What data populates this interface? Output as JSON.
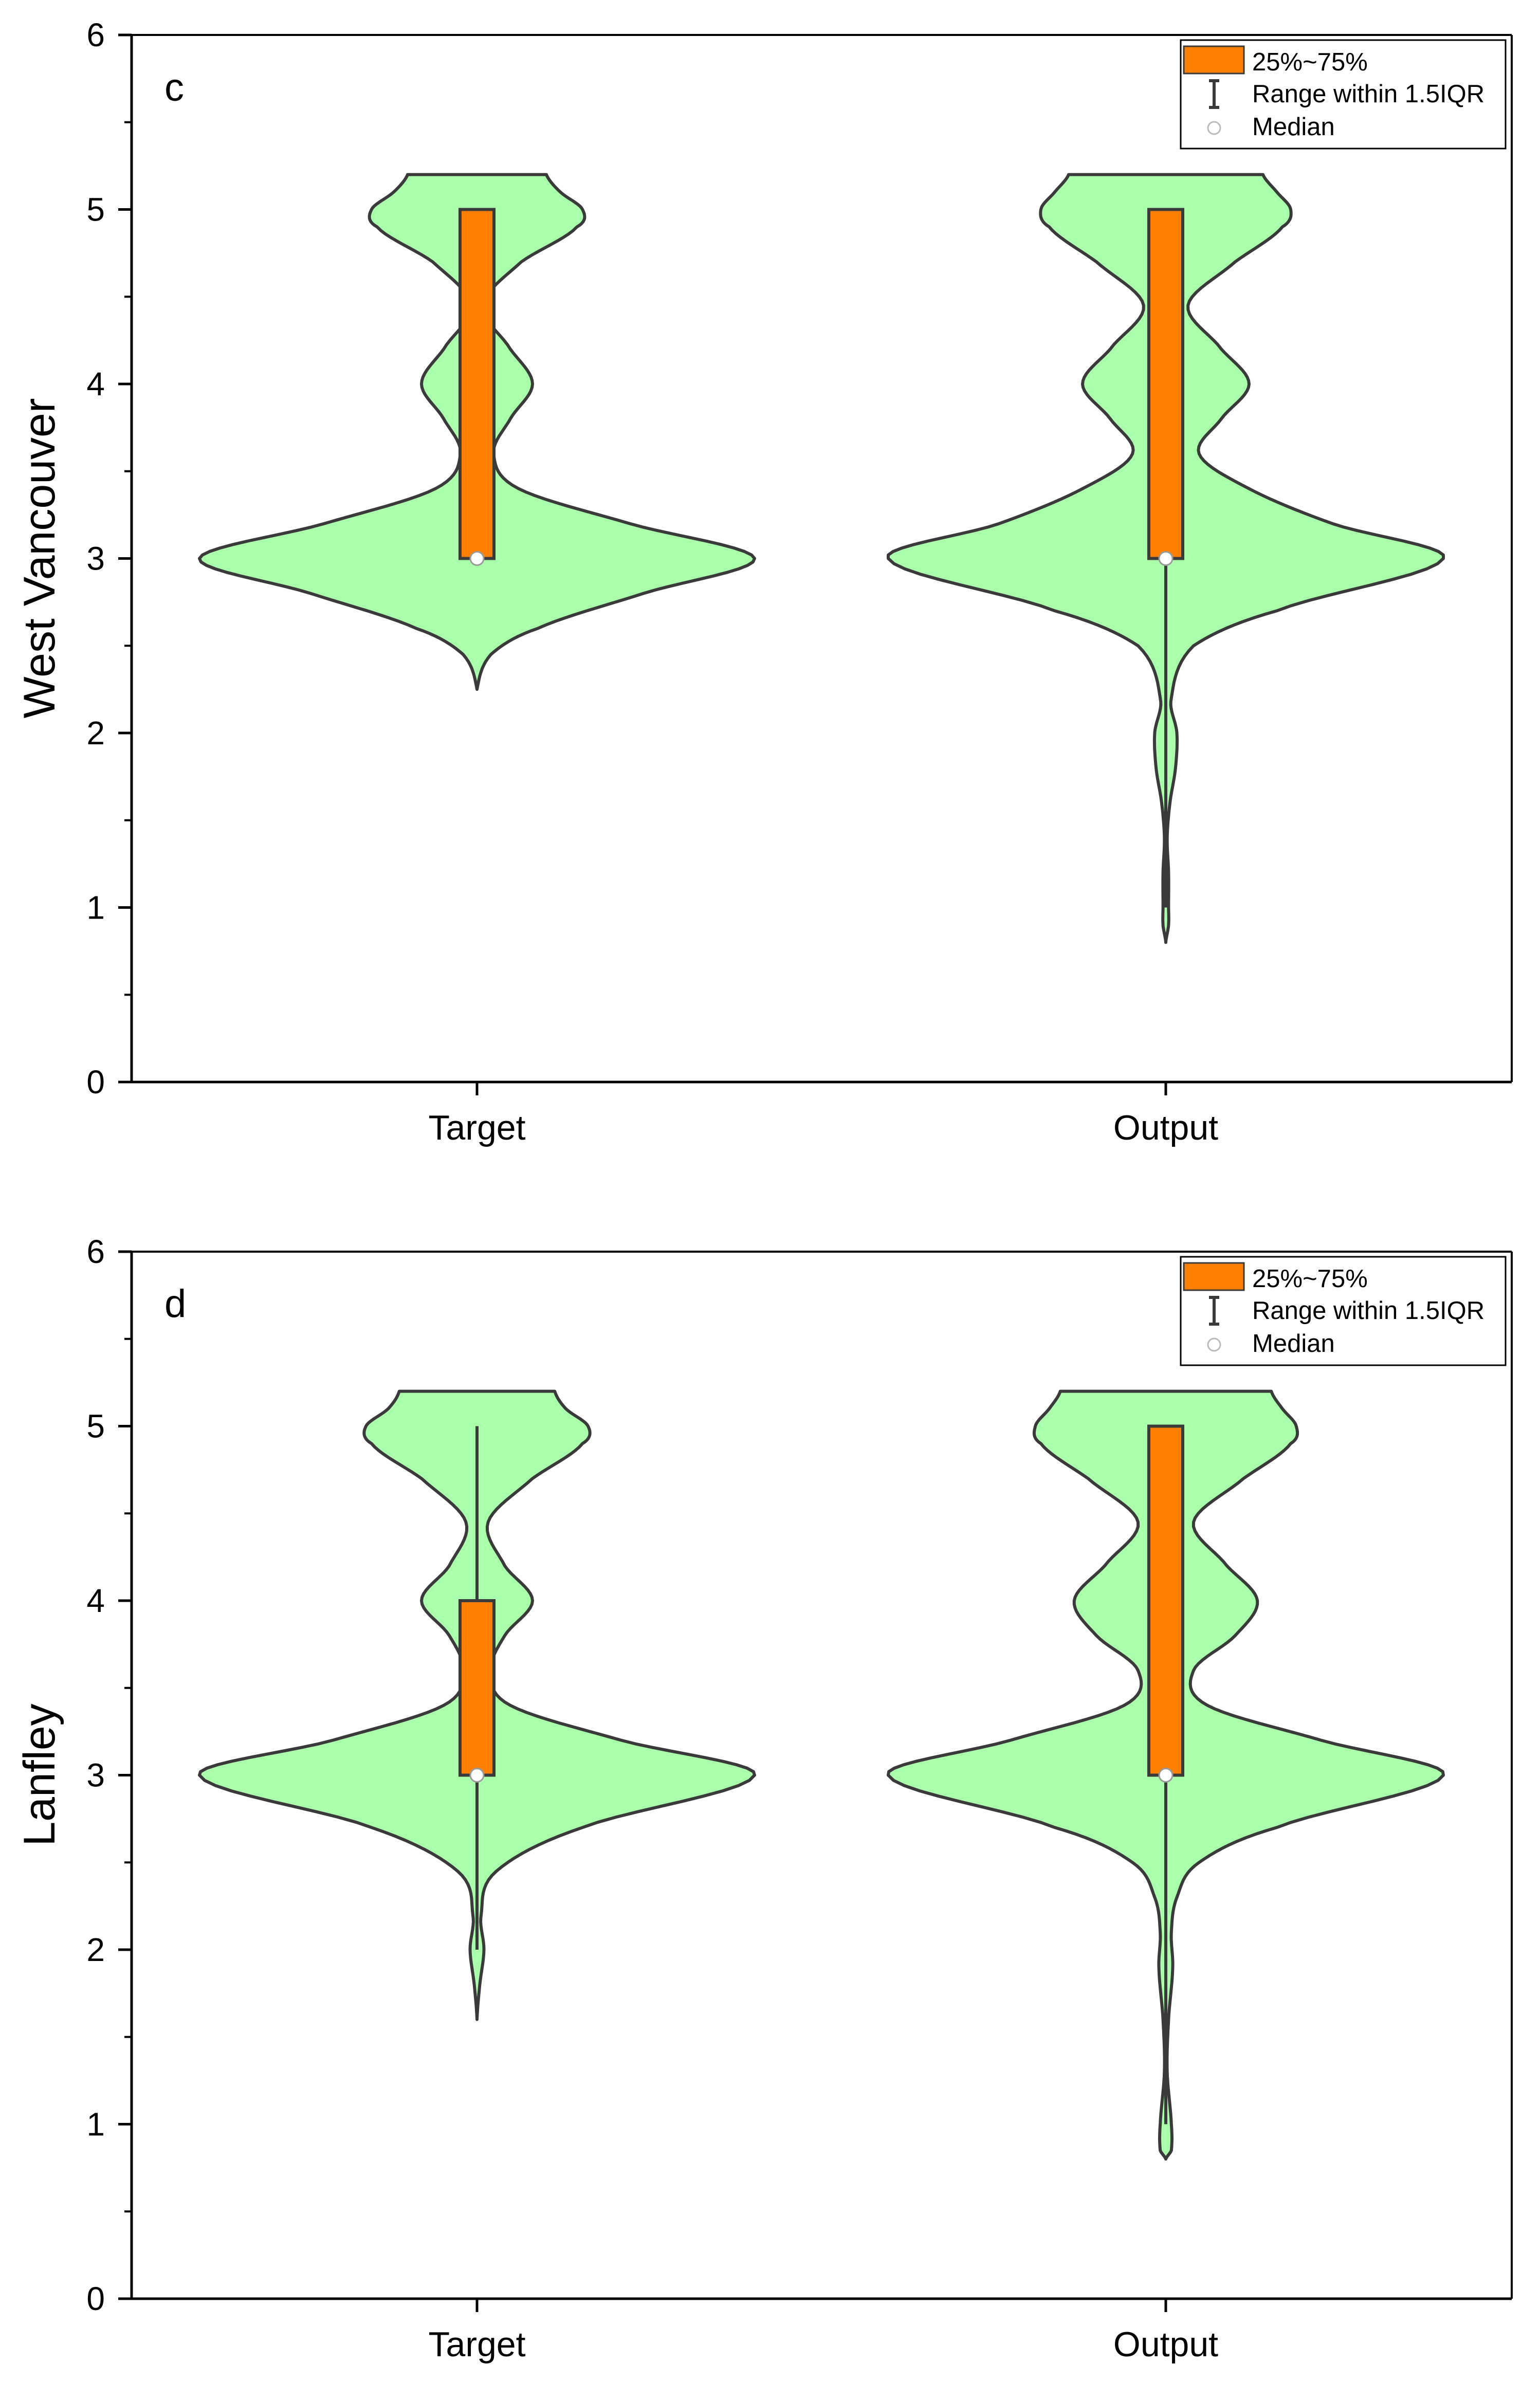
{
  "colors": {
    "violin_fill": "#AAFFAA",
    "violin_stroke": "#3a3a3a",
    "box_fill": "#FF8000",
    "axis": "#000000"
  },
  "chart_data": [
    {
      "type": "violin",
      "panel_label": "c",
      "ylabel": "West Vancouver",
      "categories": [
        "Target",
        "Output"
      ],
      "ylim": [
        0,
        6
      ],
      "yticks": [
        "0",
        "1",
        "2",
        "3",
        "4",
        "5",
        "6"
      ],
      "legend": {
        "position": "top-right",
        "entries": [
          "25%~75%",
          "Range within 1.5IQR",
          "Median"
        ]
      },
      "series": [
        {
          "name": "Target",
          "q1": 3,
          "median": 3,
          "q3": 5,
          "whisker_low": 3,
          "whisker_high": 5,
          "density": [
            [
              2.25,
              0
            ],
            [
              2.45,
              0.05
            ],
            [
              2.6,
              0.22
            ],
            [
              2.8,
              0.6
            ],
            [
              3.0,
              1.0
            ],
            [
              3.2,
              0.55
            ],
            [
              3.4,
              0.15
            ],
            [
              3.6,
              0.06
            ],
            [
              3.8,
              0.12
            ],
            [
              4.0,
              0.2
            ],
            [
              4.2,
              0.12
            ],
            [
              4.45,
              0.02
            ],
            [
              4.7,
              0.16
            ],
            [
              4.9,
              0.36
            ],
            [
              5.0,
              0.38
            ],
            [
              5.1,
              0.3
            ],
            [
              5.2,
              0.25
            ]
          ]
        },
        {
          "name": "Output",
          "q1": 3,
          "median": 3,
          "q3": 5,
          "whisker_low": 1,
          "whisker_high": 5,
          "density": [
            [
              0.8,
              0
            ],
            [
              0.9,
              0.01
            ],
            [
              1.0,
              0.01
            ],
            [
              1.2,
              0.01
            ],
            [
              1.4,
              0.005
            ],
            [
              1.6,
              0.015
            ],
            [
              1.8,
              0.035
            ],
            [
              2.0,
              0.04
            ],
            [
              2.2,
              0.02
            ],
            [
              2.5,
              0.1
            ],
            [
              2.7,
              0.4
            ],
            [
              3.0,
              1.0
            ],
            [
              3.2,
              0.6
            ],
            [
              3.4,
              0.3
            ],
            [
              3.6,
              0.12
            ],
            [
              3.8,
              0.2
            ],
            [
              4.0,
              0.3
            ],
            [
              4.2,
              0.2
            ],
            [
              4.45,
              0.08
            ],
            [
              4.7,
              0.25
            ],
            [
              4.9,
              0.42
            ],
            [
              5.0,
              0.45
            ],
            [
              5.1,
              0.4
            ],
            [
              5.2,
              0.35
            ]
          ]
        }
      ]
    },
    {
      "type": "violin",
      "panel_label": "d",
      "ylabel": "Lanfley",
      "categories": [
        "Target",
        "Output"
      ],
      "ylim": [
        0,
        6
      ],
      "yticks": [
        "0",
        "1",
        "2",
        "3",
        "4",
        "5",
        "6"
      ],
      "legend": {
        "position": "top-right",
        "entries": [
          "25%~75%",
          "Range within 1.5IQR",
          "Median"
        ]
      },
      "series": [
        {
          "name": "Target",
          "q1": 3,
          "median": 3,
          "q3": 4,
          "whisker_low": 2,
          "whisker_high": 5,
          "density": [
            [
              1.6,
              0
            ],
            [
              1.8,
              0.01
            ],
            [
              2.0,
              0.025
            ],
            [
              2.2,
              0.015
            ],
            [
              2.45,
              0.07
            ],
            [
              2.7,
              0.38
            ],
            [
              3.0,
              1.0
            ],
            [
              3.2,
              0.52
            ],
            [
              3.4,
              0.12
            ],
            [
              3.6,
              0.05
            ],
            [
              3.8,
              0.1
            ],
            [
              4.0,
              0.2
            ],
            [
              4.2,
              0.1
            ],
            [
              4.45,
              0.04
            ],
            [
              4.7,
              0.2
            ],
            [
              4.9,
              0.38
            ],
            [
              5.0,
              0.4
            ],
            [
              5.1,
              0.32
            ],
            [
              5.2,
              0.28
            ]
          ]
        },
        {
          "name": "Output",
          "q1": 3,
          "median": 3,
          "q3": 5,
          "whisker_low": 1,
          "whisker_high": 5,
          "density": [
            [
              0.8,
              0
            ],
            [
              0.85,
              0.02
            ],
            [
              1.0,
              0.02
            ],
            [
              1.3,
              0.005
            ],
            [
              1.6,
              0.01
            ],
            [
              1.9,
              0.025
            ],
            [
              2.1,
              0.02
            ],
            [
              2.3,
              0.04
            ],
            [
              2.5,
              0.12
            ],
            [
              2.7,
              0.4
            ],
            [
              3.0,
              1.0
            ],
            [
              3.2,
              0.56
            ],
            [
              3.4,
              0.15
            ],
            [
              3.6,
              0.1
            ],
            [
              3.8,
              0.25
            ],
            [
              4.0,
              0.33
            ],
            [
              4.2,
              0.22
            ],
            [
              4.45,
              0.1
            ],
            [
              4.7,
              0.28
            ],
            [
              4.9,
              0.45
            ],
            [
              5.0,
              0.47
            ],
            [
              5.1,
              0.42
            ],
            [
              5.2,
              0.38
            ]
          ]
        }
      ]
    }
  ]
}
